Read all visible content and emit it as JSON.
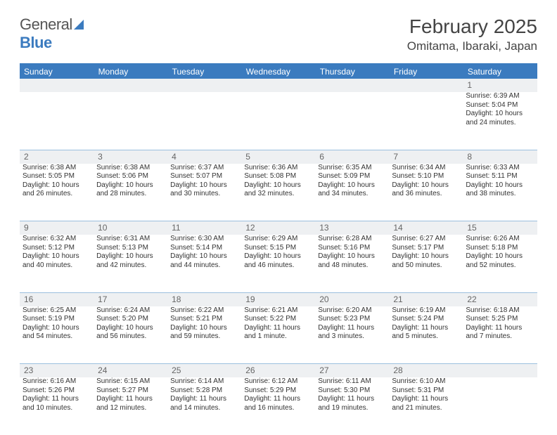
{
  "brand": {
    "word1": "General",
    "word2": "Blue"
  },
  "title": "February 2025",
  "location": "Omitama, Ibaraki, Japan",
  "colors": {
    "header_bar": "#3b7bbf",
    "daynum_bg": "#eef0f2",
    "row_divider": "#9bbfde",
    "text": "#333333",
    "title_text": "#444444"
  },
  "weekdays": [
    "Sunday",
    "Monday",
    "Tuesday",
    "Wednesday",
    "Thursday",
    "Friday",
    "Saturday"
  ],
  "weeks": [
    {
      "nums": [
        "",
        "",
        "",
        "",
        "",
        "",
        "1"
      ],
      "cells": [
        null,
        null,
        null,
        null,
        null,
        null,
        {
          "sunrise": "Sunrise: 6:39 AM",
          "sunset": "Sunset: 5:04 PM",
          "d1": "Daylight: 10 hours",
          "d2": "and 24 minutes."
        }
      ]
    },
    {
      "nums": [
        "2",
        "3",
        "4",
        "5",
        "6",
        "7",
        "8"
      ],
      "cells": [
        {
          "sunrise": "Sunrise: 6:38 AM",
          "sunset": "Sunset: 5:05 PM",
          "d1": "Daylight: 10 hours",
          "d2": "and 26 minutes."
        },
        {
          "sunrise": "Sunrise: 6:38 AM",
          "sunset": "Sunset: 5:06 PM",
          "d1": "Daylight: 10 hours",
          "d2": "and 28 minutes."
        },
        {
          "sunrise": "Sunrise: 6:37 AM",
          "sunset": "Sunset: 5:07 PM",
          "d1": "Daylight: 10 hours",
          "d2": "and 30 minutes."
        },
        {
          "sunrise": "Sunrise: 6:36 AM",
          "sunset": "Sunset: 5:08 PM",
          "d1": "Daylight: 10 hours",
          "d2": "and 32 minutes."
        },
        {
          "sunrise": "Sunrise: 6:35 AM",
          "sunset": "Sunset: 5:09 PM",
          "d1": "Daylight: 10 hours",
          "d2": "and 34 minutes."
        },
        {
          "sunrise": "Sunrise: 6:34 AM",
          "sunset": "Sunset: 5:10 PM",
          "d1": "Daylight: 10 hours",
          "d2": "and 36 minutes."
        },
        {
          "sunrise": "Sunrise: 6:33 AM",
          "sunset": "Sunset: 5:11 PM",
          "d1": "Daylight: 10 hours",
          "d2": "and 38 minutes."
        }
      ]
    },
    {
      "nums": [
        "9",
        "10",
        "11",
        "12",
        "13",
        "14",
        "15"
      ],
      "cells": [
        {
          "sunrise": "Sunrise: 6:32 AM",
          "sunset": "Sunset: 5:12 PM",
          "d1": "Daylight: 10 hours",
          "d2": "and 40 minutes."
        },
        {
          "sunrise": "Sunrise: 6:31 AM",
          "sunset": "Sunset: 5:13 PM",
          "d1": "Daylight: 10 hours",
          "d2": "and 42 minutes."
        },
        {
          "sunrise": "Sunrise: 6:30 AM",
          "sunset": "Sunset: 5:14 PM",
          "d1": "Daylight: 10 hours",
          "d2": "and 44 minutes."
        },
        {
          "sunrise": "Sunrise: 6:29 AM",
          "sunset": "Sunset: 5:15 PM",
          "d1": "Daylight: 10 hours",
          "d2": "and 46 minutes."
        },
        {
          "sunrise": "Sunrise: 6:28 AM",
          "sunset": "Sunset: 5:16 PM",
          "d1": "Daylight: 10 hours",
          "d2": "and 48 minutes."
        },
        {
          "sunrise": "Sunrise: 6:27 AM",
          "sunset": "Sunset: 5:17 PM",
          "d1": "Daylight: 10 hours",
          "d2": "and 50 minutes."
        },
        {
          "sunrise": "Sunrise: 6:26 AM",
          "sunset": "Sunset: 5:18 PM",
          "d1": "Daylight: 10 hours",
          "d2": "and 52 minutes."
        }
      ]
    },
    {
      "nums": [
        "16",
        "17",
        "18",
        "19",
        "20",
        "21",
        "22"
      ],
      "cells": [
        {
          "sunrise": "Sunrise: 6:25 AM",
          "sunset": "Sunset: 5:19 PM",
          "d1": "Daylight: 10 hours",
          "d2": "and 54 minutes."
        },
        {
          "sunrise": "Sunrise: 6:24 AM",
          "sunset": "Sunset: 5:20 PM",
          "d1": "Daylight: 10 hours",
          "d2": "and 56 minutes."
        },
        {
          "sunrise": "Sunrise: 6:22 AM",
          "sunset": "Sunset: 5:21 PM",
          "d1": "Daylight: 10 hours",
          "d2": "and 59 minutes."
        },
        {
          "sunrise": "Sunrise: 6:21 AM",
          "sunset": "Sunset: 5:22 PM",
          "d1": "Daylight: 11 hours",
          "d2": "and 1 minute."
        },
        {
          "sunrise": "Sunrise: 6:20 AM",
          "sunset": "Sunset: 5:23 PM",
          "d1": "Daylight: 11 hours",
          "d2": "and 3 minutes."
        },
        {
          "sunrise": "Sunrise: 6:19 AM",
          "sunset": "Sunset: 5:24 PM",
          "d1": "Daylight: 11 hours",
          "d2": "and 5 minutes."
        },
        {
          "sunrise": "Sunrise: 6:18 AM",
          "sunset": "Sunset: 5:25 PM",
          "d1": "Daylight: 11 hours",
          "d2": "and 7 minutes."
        }
      ]
    },
    {
      "nums": [
        "23",
        "24",
        "25",
        "26",
        "27",
        "28",
        ""
      ],
      "cells": [
        {
          "sunrise": "Sunrise: 6:16 AM",
          "sunset": "Sunset: 5:26 PM",
          "d1": "Daylight: 11 hours",
          "d2": "and 10 minutes."
        },
        {
          "sunrise": "Sunrise: 6:15 AM",
          "sunset": "Sunset: 5:27 PM",
          "d1": "Daylight: 11 hours",
          "d2": "and 12 minutes."
        },
        {
          "sunrise": "Sunrise: 6:14 AM",
          "sunset": "Sunset: 5:28 PM",
          "d1": "Daylight: 11 hours",
          "d2": "and 14 minutes."
        },
        {
          "sunrise": "Sunrise: 6:12 AM",
          "sunset": "Sunset: 5:29 PM",
          "d1": "Daylight: 11 hours",
          "d2": "and 16 minutes."
        },
        {
          "sunrise": "Sunrise: 6:11 AM",
          "sunset": "Sunset: 5:30 PM",
          "d1": "Daylight: 11 hours",
          "d2": "and 19 minutes."
        },
        {
          "sunrise": "Sunrise: 6:10 AM",
          "sunset": "Sunset: 5:31 PM",
          "d1": "Daylight: 11 hours",
          "d2": "and 21 minutes."
        },
        null
      ]
    }
  ]
}
